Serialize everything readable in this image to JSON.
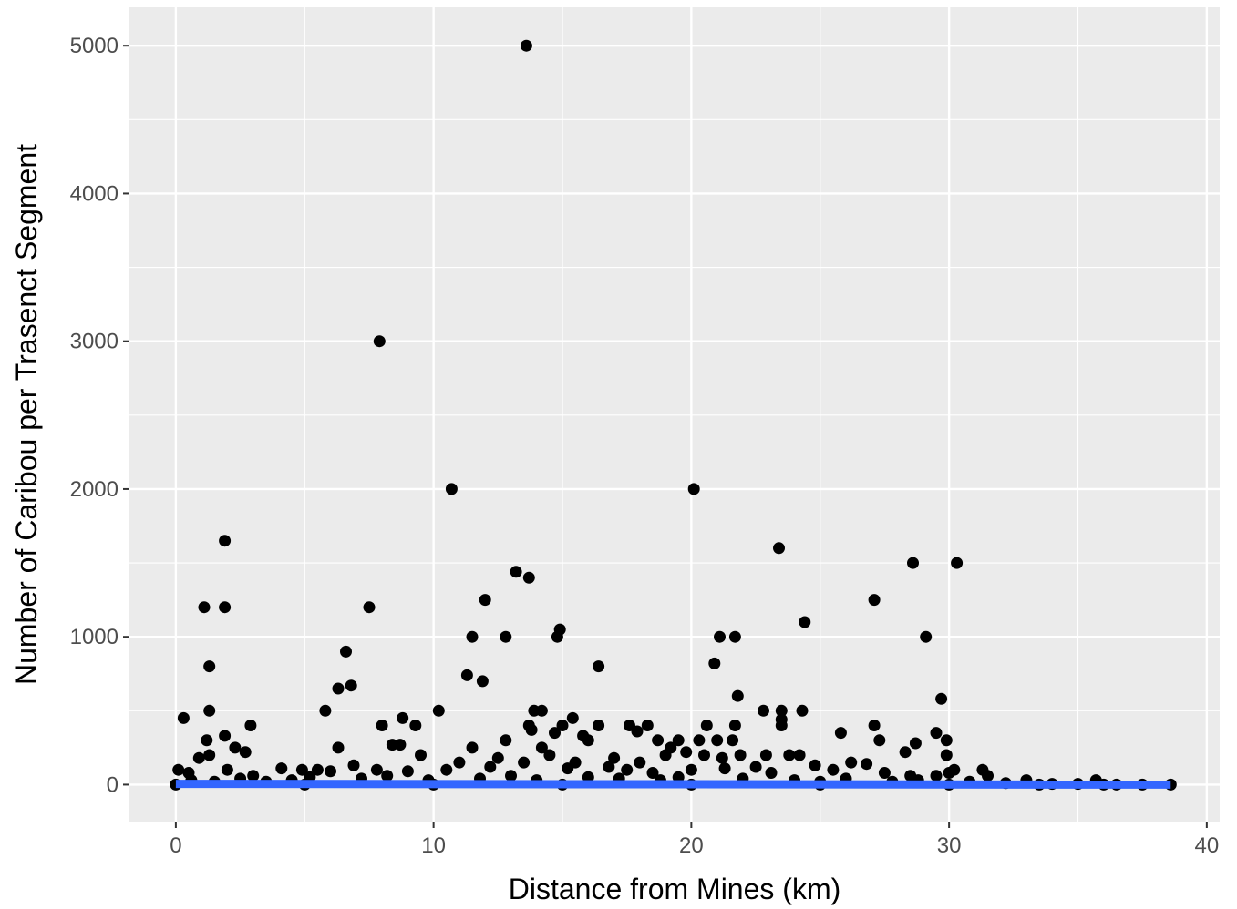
{
  "chart_data": {
    "type": "scatter",
    "title": "",
    "xlabel": "Distance from Mines (km)",
    "ylabel": "Number of Caribou per Trasenct Segment",
    "xlim": [
      -1.8,
      40.5
    ],
    "ylim": [
      -250,
      5260
    ],
    "x_ticks": [
      0,
      10,
      20,
      30,
      40
    ],
    "x_tick_labels": [
      "0",
      "10",
      "20",
      "30",
      "40"
    ],
    "y_ticks": [
      0,
      1000,
      2000,
      3000,
      4000,
      5000
    ],
    "y_tick_labels": [
      "0",
      "1000",
      "2000",
      "3000",
      "4000",
      "5000"
    ],
    "grid": true,
    "legend": "none",
    "panel_background": "#ebebeb",
    "grid_color": "#ffffff",
    "point_color": "#000000",
    "trend_line_color": "#3366ff",
    "points": [
      [
        13.6,
        5000
      ],
      [
        7.9,
        3000
      ],
      [
        10.7,
        2000
      ],
      [
        20.1,
        2000
      ],
      [
        1.9,
        1650
      ],
      [
        23.4,
        1600
      ],
      [
        28.6,
        1500
      ],
      [
        30.3,
        1500
      ],
      [
        13.2,
        1440
      ],
      [
        13.7,
        1400
      ],
      [
        1.1,
        1200
      ],
      [
        1.9,
        1200
      ],
      [
        7.5,
        1200
      ],
      [
        12.0,
        1250
      ],
      [
        27.1,
        1250
      ],
      [
        24.4,
        1100
      ],
      [
        14.9,
        1050
      ],
      [
        11.5,
        1000
      ],
      [
        12.8,
        1000
      ],
      [
        14.8,
        1000
      ],
      [
        21.1,
        1000
      ],
      [
        21.7,
        1000
      ],
      [
        29.1,
        1000
      ],
      [
        6.6,
        900
      ],
      [
        20.9,
        820
      ],
      [
        1.3,
        800
      ],
      [
        16.4,
        800
      ],
      [
        11.3,
        740
      ],
      [
        11.9,
        700
      ],
      [
        6.8,
        670
      ],
      [
        6.3,
        650
      ],
      [
        21.8,
        600
      ],
      [
        29.7,
        580
      ],
      [
        0.3,
        450
      ],
      [
        1.3,
        500
      ],
      [
        5.8,
        500
      ],
      [
        10.2,
        500
      ],
      [
        13.9,
        500
      ],
      [
        14.2,
        500
      ],
      [
        23.5,
        500
      ],
      [
        24.3,
        500
      ],
      [
        8.8,
        450
      ],
      [
        15.4,
        450
      ],
      [
        23.5,
        440
      ],
      [
        9.3,
        400
      ],
      [
        2.9,
        400
      ],
      [
        8.0,
        400
      ],
      [
        13.7,
        400
      ],
      [
        15.0,
        400
      ],
      [
        16.4,
        400
      ],
      [
        17.6,
        400
      ],
      [
        18.3,
        400
      ],
      [
        20.6,
        400
      ],
      [
        21.7,
        400
      ],
      [
        23.5,
        400
      ],
      [
        27.1,
        400
      ],
      [
        1.9,
        330
      ],
      [
        2.3,
        250
      ],
      [
        6.3,
        250
      ],
      [
        8.4,
        270
      ],
      [
        8.7,
        270
      ],
      [
        13.8,
        370
      ],
      [
        14.7,
        350
      ],
      [
        15.8,
        330
      ],
      [
        16.0,
        300
      ],
      [
        17.9,
        360
      ],
      [
        18.7,
        300
      ],
      [
        19.2,
        250
      ],
      [
        19.5,
        300
      ],
      [
        20.3,
        300
      ],
      [
        21.0,
        300
      ],
      [
        21.6,
        300
      ],
      [
        25.8,
        350
      ],
      [
        27.3,
        300
      ],
      [
        28.7,
        280
      ],
      [
        29.5,
        350
      ],
      [
        29.9,
        300
      ],
      [
        1.2,
        300
      ],
      [
        1.3,
        200
      ],
      [
        0.9,
        180
      ],
      [
        2.7,
        220
      ],
      [
        9.5,
        200
      ],
      [
        11.5,
        250
      ],
      [
        12.5,
        180
      ],
      [
        12.8,
        300
      ],
      [
        14.2,
        250
      ],
      [
        14.5,
        200
      ],
      [
        15.5,
        150
      ],
      [
        17.0,
        180
      ],
      [
        18.0,
        150
      ],
      [
        19.0,
        200
      ],
      [
        19.8,
        220
      ],
      [
        20.5,
        200
      ],
      [
        21.2,
        180
      ],
      [
        21.9,
        200
      ],
      [
        22.8,
        500
      ],
      [
        22.9,
        200
      ],
      [
        23.8,
        200
      ],
      [
        24.2,
        200
      ],
      [
        26.2,
        150
      ],
      [
        28.3,
        220
      ],
      [
        29.9,
        200
      ],
      [
        30.2,
        100
      ],
      [
        31.3,
        100
      ],
      [
        0.1,
        100
      ],
      [
        0.5,
        80
      ],
      [
        2.0,
        100
      ],
      [
        3.0,
        60
      ],
      [
        4.1,
        110
      ],
      [
        4.9,
        100
      ],
      [
        5.5,
        100
      ],
      [
        6.0,
        90
      ],
      [
        6.9,
        130
      ],
      [
        7.8,
        100
      ],
      [
        9.0,
        90
      ],
      [
        10.5,
        100
      ],
      [
        11.0,
        150
      ],
      [
        12.2,
        120
      ],
      [
        13.5,
        150
      ],
      [
        15.2,
        110
      ],
      [
        16.8,
        120
      ],
      [
        17.5,
        100
      ],
      [
        18.5,
        80
      ],
      [
        20.0,
        100
      ],
      [
        21.3,
        110
      ],
      [
        22.5,
        120
      ],
      [
        23.1,
        80
      ],
      [
        24.8,
        130
      ],
      [
        25.5,
        100
      ],
      [
        26.8,
        140
      ],
      [
        27.5,
        80
      ],
      [
        28.5,
        60
      ],
      [
        29.5,
        60
      ],
      [
        30.0,
        80
      ],
      [
        31.5,
        60
      ],
      [
        33.0,
        30
      ],
      [
        35.7,
        30
      ],
      [
        0.6,
        30
      ],
      [
        1.5,
        20
      ],
      [
        2.5,
        40
      ],
      [
        3.5,
        20
      ],
      [
        4.5,
        30
      ],
      [
        5.2,
        50
      ],
      [
        7.2,
        40
      ],
      [
        8.2,
        60
      ],
      [
        9.8,
        30
      ],
      [
        11.8,
        40
      ],
      [
        13.0,
        60
      ],
      [
        14.0,
        30
      ],
      [
        16.0,
        50
      ],
      [
        17.2,
        40
      ],
      [
        18.8,
        30
      ],
      [
        19.5,
        50
      ],
      [
        22.0,
        40
      ],
      [
        24.0,
        30
      ],
      [
        25.0,
        20
      ],
      [
        26.0,
        40
      ],
      [
        27.8,
        20
      ],
      [
        28.8,
        30
      ],
      [
        30.8,
        20
      ],
      [
        32.2,
        10
      ],
      [
        34.0,
        5
      ],
      [
        35.0,
        5
      ],
      [
        36.5,
        0
      ],
      [
        37.5,
        0
      ],
      [
        38.6,
        0
      ],
      [
        0.0,
        0
      ],
      [
        5.0,
        0
      ],
      [
        10.0,
        0
      ],
      [
        15.0,
        0
      ],
      [
        20.0,
        0
      ],
      [
        25.0,
        0
      ],
      [
        30.0,
        0
      ],
      [
        33.5,
        0
      ],
      [
        36.0,
        0
      ]
    ],
    "trend_line": {
      "x": [
        0,
        38.6
      ],
      "y": [
        5,
        0
      ]
    }
  }
}
